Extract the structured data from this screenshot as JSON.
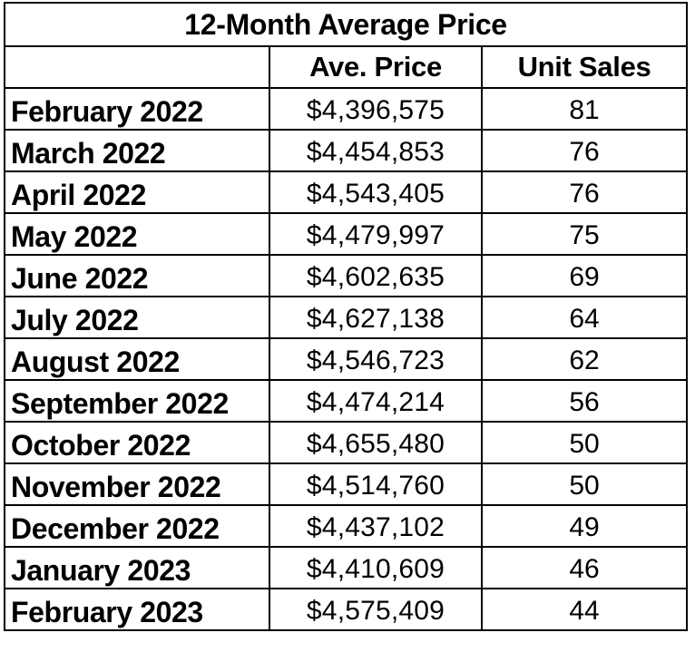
{
  "chart_data": {
    "type": "table",
    "title": "12-Month Average Price",
    "columns": [
      "",
      "Ave. Price",
      "Unit Sales"
    ],
    "rows": [
      {
        "month": "February 2022",
        "price": "$4,396,575",
        "units": "81"
      },
      {
        "month": "March 2022",
        "price": "$4,454,853",
        "units": "76"
      },
      {
        "month": "April 2022",
        "price": "$4,543,405",
        "units": "76"
      },
      {
        "month": "May 2022",
        "price": "$4,479,997",
        "units": "75"
      },
      {
        "month": "June 2022",
        "price": "$4,602,635",
        "units": "69"
      },
      {
        "month": "July 2022",
        "price": "$4,627,138",
        "units": "64"
      },
      {
        "month": "August 2022",
        "price": "$4,546,723",
        "units": "62"
      },
      {
        "month": "September 2022",
        "price": "$4,474,214",
        "units": "56"
      },
      {
        "month": "October 2022",
        "price": "$4,655,480",
        "units": "50"
      },
      {
        "month": "November 2022",
        "price": "$4,514,760",
        "units": "50"
      },
      {
        "month": "December 2022",
        "price": "$4,437,102",
        "units": "49"
      },
      {
        "month": "January 2023",
        "price": "$4,410,609",
        "units": "46"
      },
      {
        "month": "February 2023",
        "price": "$4,575,409",
        "units": "44"
      }
    ]
  }
}
